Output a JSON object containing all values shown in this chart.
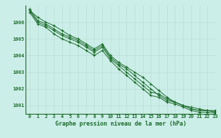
{
  "title": "Graphe pression niveau de la mer (hPa)",
  "background_color": "#cceee8",
  "grid_color": "#b8ddd6",
  "line_color": "#1a6b2a",
  "xlim": [
    -0.5,
    23
  ],
  "ylim": [
    1000.5,
    1007.0
  ],
  "yticks": [
    1001,
    1002,
    1003,
    1004,
    1005,
    1006
  ],
  "xticks": [
    0,
    1,
    2,
    3,
    4,
    5,
    6,
    7,
    8,
    9,
    10,
    11,
    12,
    13,
    14,
    15,
    16,
    17,
    18,
    19,
    20,
    21,
    22,
    23
  ],
  "series": [
    [
      1006.7,
      1006.3,
      1006.0,
      1005.8,
      1005.5,
      1005.2,
      1005.0,
      1004.7,
      1004.4,
      1004.7,
      1004.0,
      1003.6,
      1003.3,
      1003.0,
      1002.7,
      1002.3,
      1001.9,
      1001.5,
      1001.2,
      1001.0,
      1000.8,
      1000.7,
      1000.7,
      1000.7
    ],
    [
      1006.7,
      1006.0,
      1005.8,
      1005.5,
      1005.2,
      1005.0,
      1004.8,
      1004.5,
      1004.2,
      1004.5,
      1003.8,
      1003.4,
      1003.0,
      1002.6,
      1002.2,
      1001.8,
      1001.7,
      1001.4,
      1001.2,
      1001.0,
      1000.9,
      1000.8,
      1000.7,
      1000.6
    ],
    [
      1006.8,
      1006.1,
      1005.9,
      1005.6,
      1005.3,
      1005.1,
      1004.9,
      1004.6,
      1004.3,
      1004.6,
      1003.9,
      1003.5,
      1003.2,
      1002.8,
      1002.4,
      1002.0,
      1001.6,
      1001.3,
      1001.2,
      1001.0,
      1000.8,
      1000.7,
      1000.7,
      1000.65
    ],
    [
      1006.6,
      1005.9,
      1005.7,
      1005.3,
      1005.0,
      1004.8,
      1004.6,
      1004.3,
      1004.0,
      1004.3,
      1003.7,
      1003.2,
      1002.8,
      1002.4,
      1002.0,
      1001.6,
      1001.5,
      1001.2,
      1001.1,
      1000.9,
      1000.7,
      1000.6,
      1000.6,
      1000.55
    ]
  ]
}
